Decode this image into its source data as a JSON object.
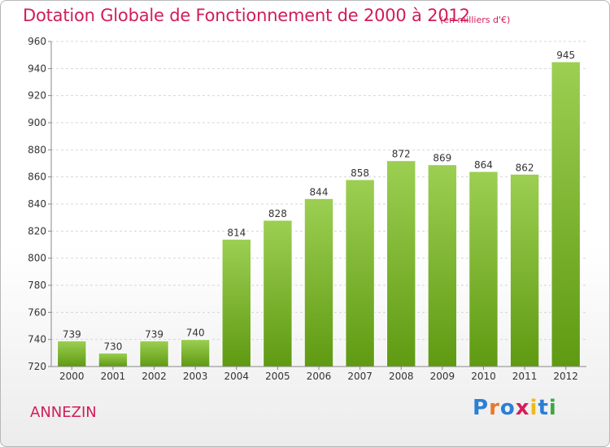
{
  "chart_data": {
    "type": "bar",
    "title": "Dotation Globale de Fonctionnement de 2000 à 2012",
    "subtitle": "(en milliers d'€)",
    "categories": [
      "2000",
      "2001",
      "2002",
      "2003",
      "2004",
      "2005",
      "2006",
      "2007",
      "2008",
      "2009",
      "2010",
      "2011",
      "2012"
    ],
    "values": [
      739,
      730,
      739,
      740,
      814,
      828,
      844,
      858,
      872,
      869,
      864,
      862,
      945
    ],
    "ylim": [
      720,
      960
    ],
    "yticks": [
      720,
      740,
      760,
      780,
      800,
      820,
      840,
      860,
      880,
      900,
      920,
      940,
      960
    ],
    "grid": true,
    "bar_color": "#7cb92c",
    "legend": "none"
  },
  "commune": "ANNEZIN",
  "logo": {
    "text": "Proxiti",
    "colors": [
      "#2b7fd4",
      "#e8782a",
      "#2b7fd4",
      "#d41f5a",
      "#f0b81c",
      "#2b7fd4",
      "#3aa845"
    ]
  }
}
